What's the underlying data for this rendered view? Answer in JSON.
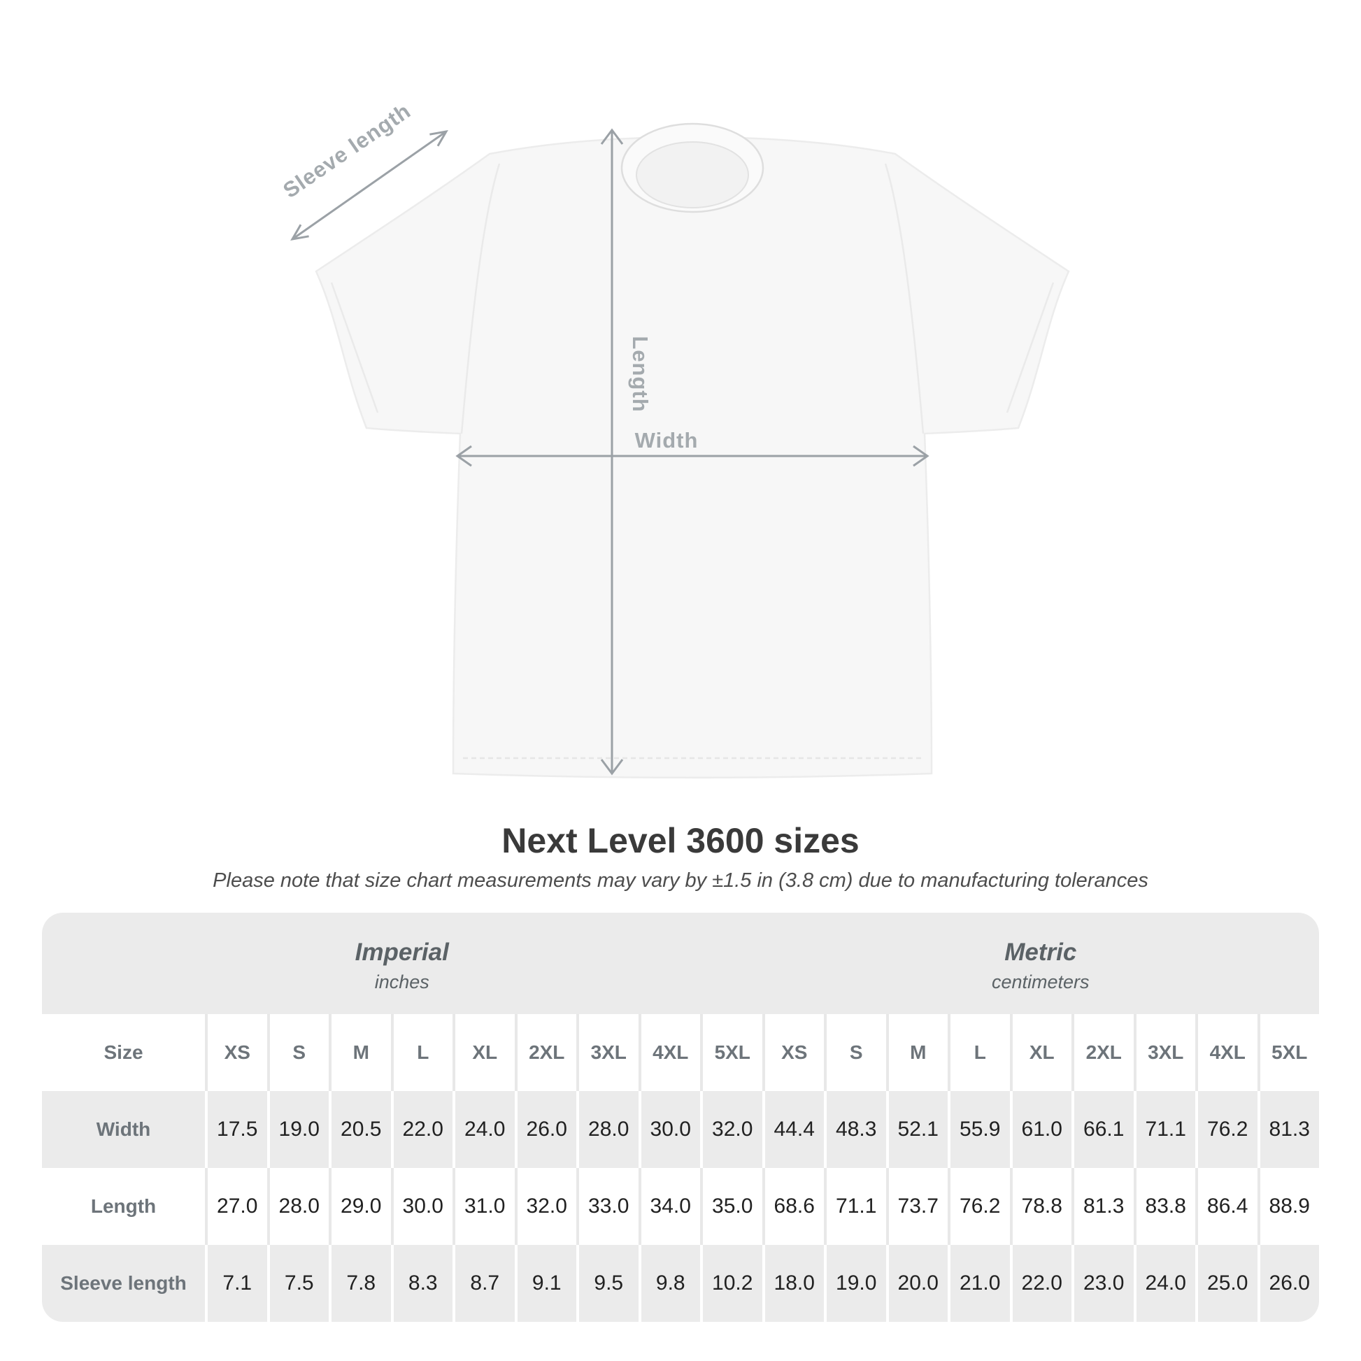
{
  "title": "Next Level 3600 sizes",
  "subtitle": "Please note that size chart measurements may vary by ±1.5 in (3.8 cm) due to manufacturing tolerances",
  "shirt_diagram": {
    "labels": {
      "sleeve_length": "Sleeve length",
      "length": "Length",
      "width": "Width"
    },
    "colors": {
      "annotation_line": "#9ba1a6",
      "annotation_text": "#a4aaae",
      "shirt_fill": "#f7f7f7"
    }
  },
  "size_chart": {
    "corner_label": "Size",
    "unit_groups": [
      {
        "label": "Imperial",
        "sublabel": "inches"
      },
      {
        "label": "Metric",
        "sublabel": "centimeters"
      }
    ],
    "sizes": [
      "XS",
      "S",
      "M",
      "L",
      "XL",
      "2XL",
      "3XL",
      "4XL",
      "5XL"
    ],
    "rows": [
      {
        "label": "Width",
        "imperial": [
          "17.5",
          "19.0",
          "20.5",
          "22.0",
          "24.0",
          "26.0",
          "28.0",
          "30.0",
          "32.0"
        ],
        "metric": [
          "44.4",
          "48.3",
          "52.1",
          "55.9",
          "61.0",
          "66.1",
          "71.1",
          "76.2",
          "81.3"
        ]
      },
      {
        "label": "Length",
        "imperial": [
          "27.0",
          "28.0",
          "29.0",
          "30.0",
          "31.0",
          "32.0",
          "33.0",
          "34.0",
          "35.0"
        ],
        "metric": [
          "68.6",
          "71.1",
          "73.7",
          "76.2",
          "78.8",
          "81.3",
          "83.8",
          "86.4",
          "88.9"
        ]
      },
      {
        "label": "Sleeve length",
        "imperial": [
          "7.1",
          "7.5",
          "7.8",
          "8.3",
          "8.7",
          "9.1",
          "9.5",
          "9.8",
          "10.2"
        ],
        "metric": [
          "18.0",
          "19.0",
          "20.0",
          "21.0",
          "22.0",
          "23.0",
          "24.0",
          "25.0",
          "26.0"
        ]
      }
    ]
  },
  "chart_data": {
    "type": "table",
    "title": "Next Level 3600 sizes",
    "note": "Please note that size chart measurements may vary by ±1.5 in (3.8 cm) due to manufacturing tolerances",
    "units": {
      "imperial": "inches",
      "metric": "centimeters"
    },
    "sizes": [
      "XS",
      "S",
      "M",
      "L",
      "XL",
      "2XL",
      "3XL",
      "4XL",
      "5XL"
    ],
    "measurements": {
      "Width": {
        "imperial": [
          17.5,
          19.0,
          20.5,
          22.0,
          24.0,
          26.0,
          28.0,
          30.0,
          32.0
        ],
        "metric": [
          44.4,
          48.3,
          52.1,
          55.9,
          61.0,
          66.1,
          71.1,
          76.2,
          81.3
        ]
      },
      "Length": {
        "imperial": [
          27.0,
          28.0,
          29.0,
          30.0,
          31.0,
          32.0,
          33.0,
          34.0,
          35.0
        ],
        "metric": [
          68.6,
          71.1,
          73.7,
          76.2,
          78.8,
          81.3,
          83.8,
          86.4,
          88.9
        ]
      },
      "Sleeve length": {
        "imperial": [
          7.1,
          7.5,
          7.8,
          8.3,
          8.7,
          9.1,
          9.5,
          9.8,
          10.2
        ],
        "metric": [
          18.0,
          19.0,
          20.0,
          21.0,
          22.0,
          23.0,
          24.0,
          25.0,
          26.0
        ]
      }
    }
  }
}
